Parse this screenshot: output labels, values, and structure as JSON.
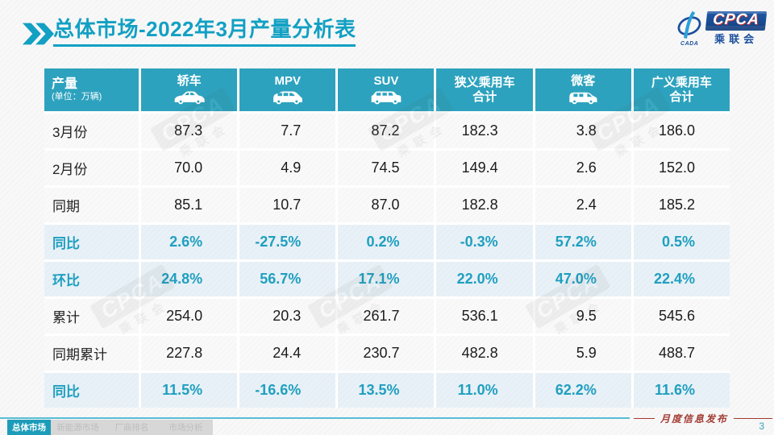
{
  "title": {
    "text": "总体市场-2022年3月产量分析表"
  },
  "logo": {
    "acronym": "CPCA",
    "chinese": "乘联会",
    "emblem_text": "CADA"
  },
  "table": {
    "header": {
      "col0_title": "产量",
      "col0_sub": "(单位：万辆)",
      "columns": [
        {
          "label": "轿车",
          "icon": "sedan-icon"
        },
        {
          "label": "MPV",
          "icon": "mpv-icon"
        },
        {
          "label": "SUV",
          "icon": "suv-icon"
        },
        {
          "label": "狭义乘用车\n合计",
          "icon": null
        },
        {
          "label": "微客",
          "icon": "microvan-icon"
        },
        {
          "label": "广义乘用车\n合计",
          "icon": null
        }
      ]
    },
    "rows": [
      {
        "label": "3月份",
        "highlight": false,
        "values": [
          "87.3",
          "7.7",
          "87.2",
          "182.3",
          "3.8",
          "186.0"
        ]
      },
      {
        "label": "2月份",
        "highlight": false,
        "values": [
          "70.0",
          "4.9",
          "74.5",
          "149.4",
          "2.6",
          "152.0"
        ]
      },
      {
        "label": "同期",
        "highlight": false,
        "values": [
          "85.1",
          "10.7",
          "87.0",
          "182.8",
          "2.4",
          "185.2"
        ]
      },
      {
        "label": "同比",
        "highlight": true,
        "values": [
          "2.6%",
          "-27.5%",
          "0.2%",
          "-0.3%",
          "57.2%",
          "0.5%"
        ]
      },
      {
        "label": "环比",
        "highlight": true,
        "values": [
          "24.8%",
          "56.7%",
          "17.1%",
          "22.0%",
          "47.0%",
          "22.4%"
        ]
      },
      {
        "label": "累计",
        "highlight": false,
        "values": [
          "254.0",
          "20.3",
          "261.7",
          "536.1",
          "9.5",
          "545.6"
        ]
      },
      {
        "label": "同期累计",
        "highlight": false,
        "values": [
          "227.8",
          "24.4",
          "230.7",
          "482.8",
          "5.9",
          "488.7"
        ]
      },
      {
        "label": "同比",
        "highlight": true,
        "values": [
          "11.5%",
          "-16.6%",
          "13.5%",
          "11.0%",
          "62.2%",
          "11.6%"
        ]
      }
    ]
  },
  "footer": {
    "tabs": [
      {
        "label": "总体市场",
        "active": true
      },
      {
        "label": "新能源市场",
        "active": false
      },
      {
        "label": "厂商排名",
        "active": false
      },
      {
        "label": "市场分析",
        "active": false
      }
    ],
    "publication": "月度信息发布",
    "page_number": "3"
  },
  "colors": {
    "header_teal": "#2da2be",
    "title_teal": "#12a0c3",
    "percent_text_teal": "#1f9fc0",
    "highlight_row_bg": "#e8f1f7",
    "active_tab_teal": "#1d9cba",
    "inactive_tab_bg": "#d7d7d7",
    "footer_line_teal": "#58bed5",
    "publication_red": "#a23a32",
    "logo_blue": "#1b4f9c"
  }
}
